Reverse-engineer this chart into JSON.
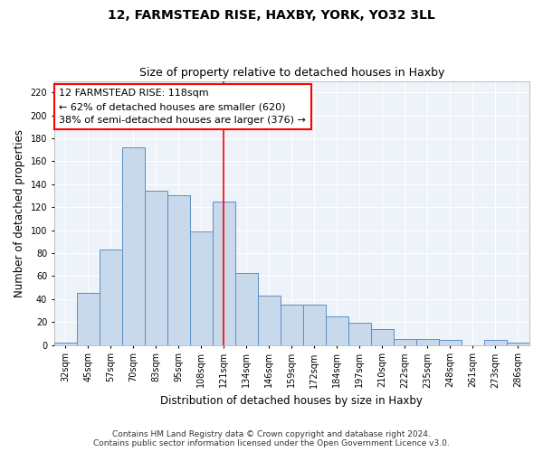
{
  "title_line1": "12, FARMSTEAD RISE, HAXBY, YORK, YO32 3LL",
  "title_line2": "Size of property relative to detached houses in Haxby",
  "xlabel": "Distribution of detached houses by size in Haxby",
  "ylabel": "Number of detached properties",
  "categories": [
    "32sqm",
    "45sqm",
    "57sqm",
    "70sqm",
    "83sqm",
    "95sqm",
    "108sqm",
    "121sqm",
    "134sqm",
    "146sqm",
    "159sqm",
    "172sqm",
    "184sqm",
    "197sqm",
    "210sqm",
    "222sqm",
    "235sqm",
    "248sqm",
    "261sqm",
    "273sqm",
    "286sqm"
  ],
  "values": [
    2,
    45,
    83,
    172,
    134,
    130,
    99,
    125,
    63,
    43,
    35,
    35,
    25,
    19,
    14,
    5,
    5,
    4,
    0,
    4,
    2
  ],
  "bar_color": "#c9d9ec",
  "bar_edge_color": "#5b8ec4",
  "vline_x": 7,
  "vline_color": "red",
  "annotation_text": "12 FARMSTEAD RISE: 118sqm\n← 62% of detached houses are smaller (620)\n38% of semi-detached houses are larger (376) →",
  "annotation_box_color": "white",
  "annotation_box_edge_color": "red",
  "ylim": [
    0,
    230
  ],
  "yticks": [
    0,
    20,
    40,
    60,
    80,
    100,
    120,
    140,
    160,
    180,
    200,
    220
  ],
  "footer_line1": "Contains HM Land Registry data © Crown copyright and database right 2024.",
  "footer_line2": "Contains public sector information licensed under the Open Government Licence v3.0.",
  "background_color": "#eef2f9",
  "grid_color": "white",
  "title_fontsize": 10,
  "subtitle_fontsize": 9,
  "axis_label_fontsize": 8.5,
  "tick_fontsize": 7,
  "annotation_fontsize": 8,
  "footer_fontsize": 6.5
}
